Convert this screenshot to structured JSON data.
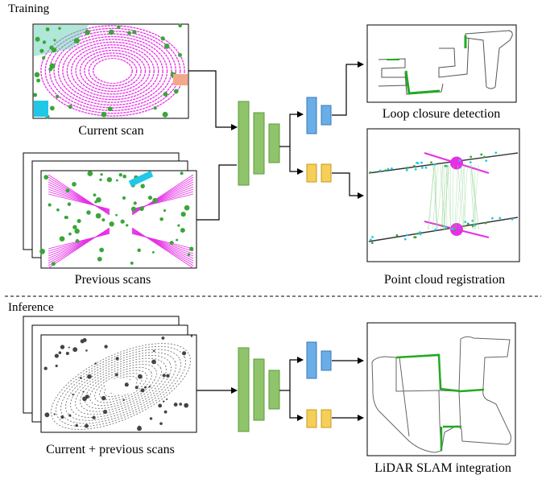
{
  "sections": {
    "training": "Training",
    "inference": "Inference"
  },
  "labels": {
    "current_scan": "Current scan",
    "previous_scans": "Previous scans",
    "loop_closure": "Loop closure detection",
    "registration": "Point cloud registration",
    "current_previous": "Current + previous scans",
    "slam": "LiDAR SLAM integration"
  },
  "colors": {
    "network": "#8fc46a",
    "network_stroke": "#5e9a3d",
    "head_blue": "#6aaee8",
    "head_blue_stroke": "#3a78b8",
    "head_yellow": "#f5cf57",
    "head_yellow_stroke": "#c99a1c",
    "magenta": "#e62ee6",
    "lidar_green": "#3aa63a",
    "trajectory_green": "#22aa22",
    "cyan": "#20c8e8"
  }
}
